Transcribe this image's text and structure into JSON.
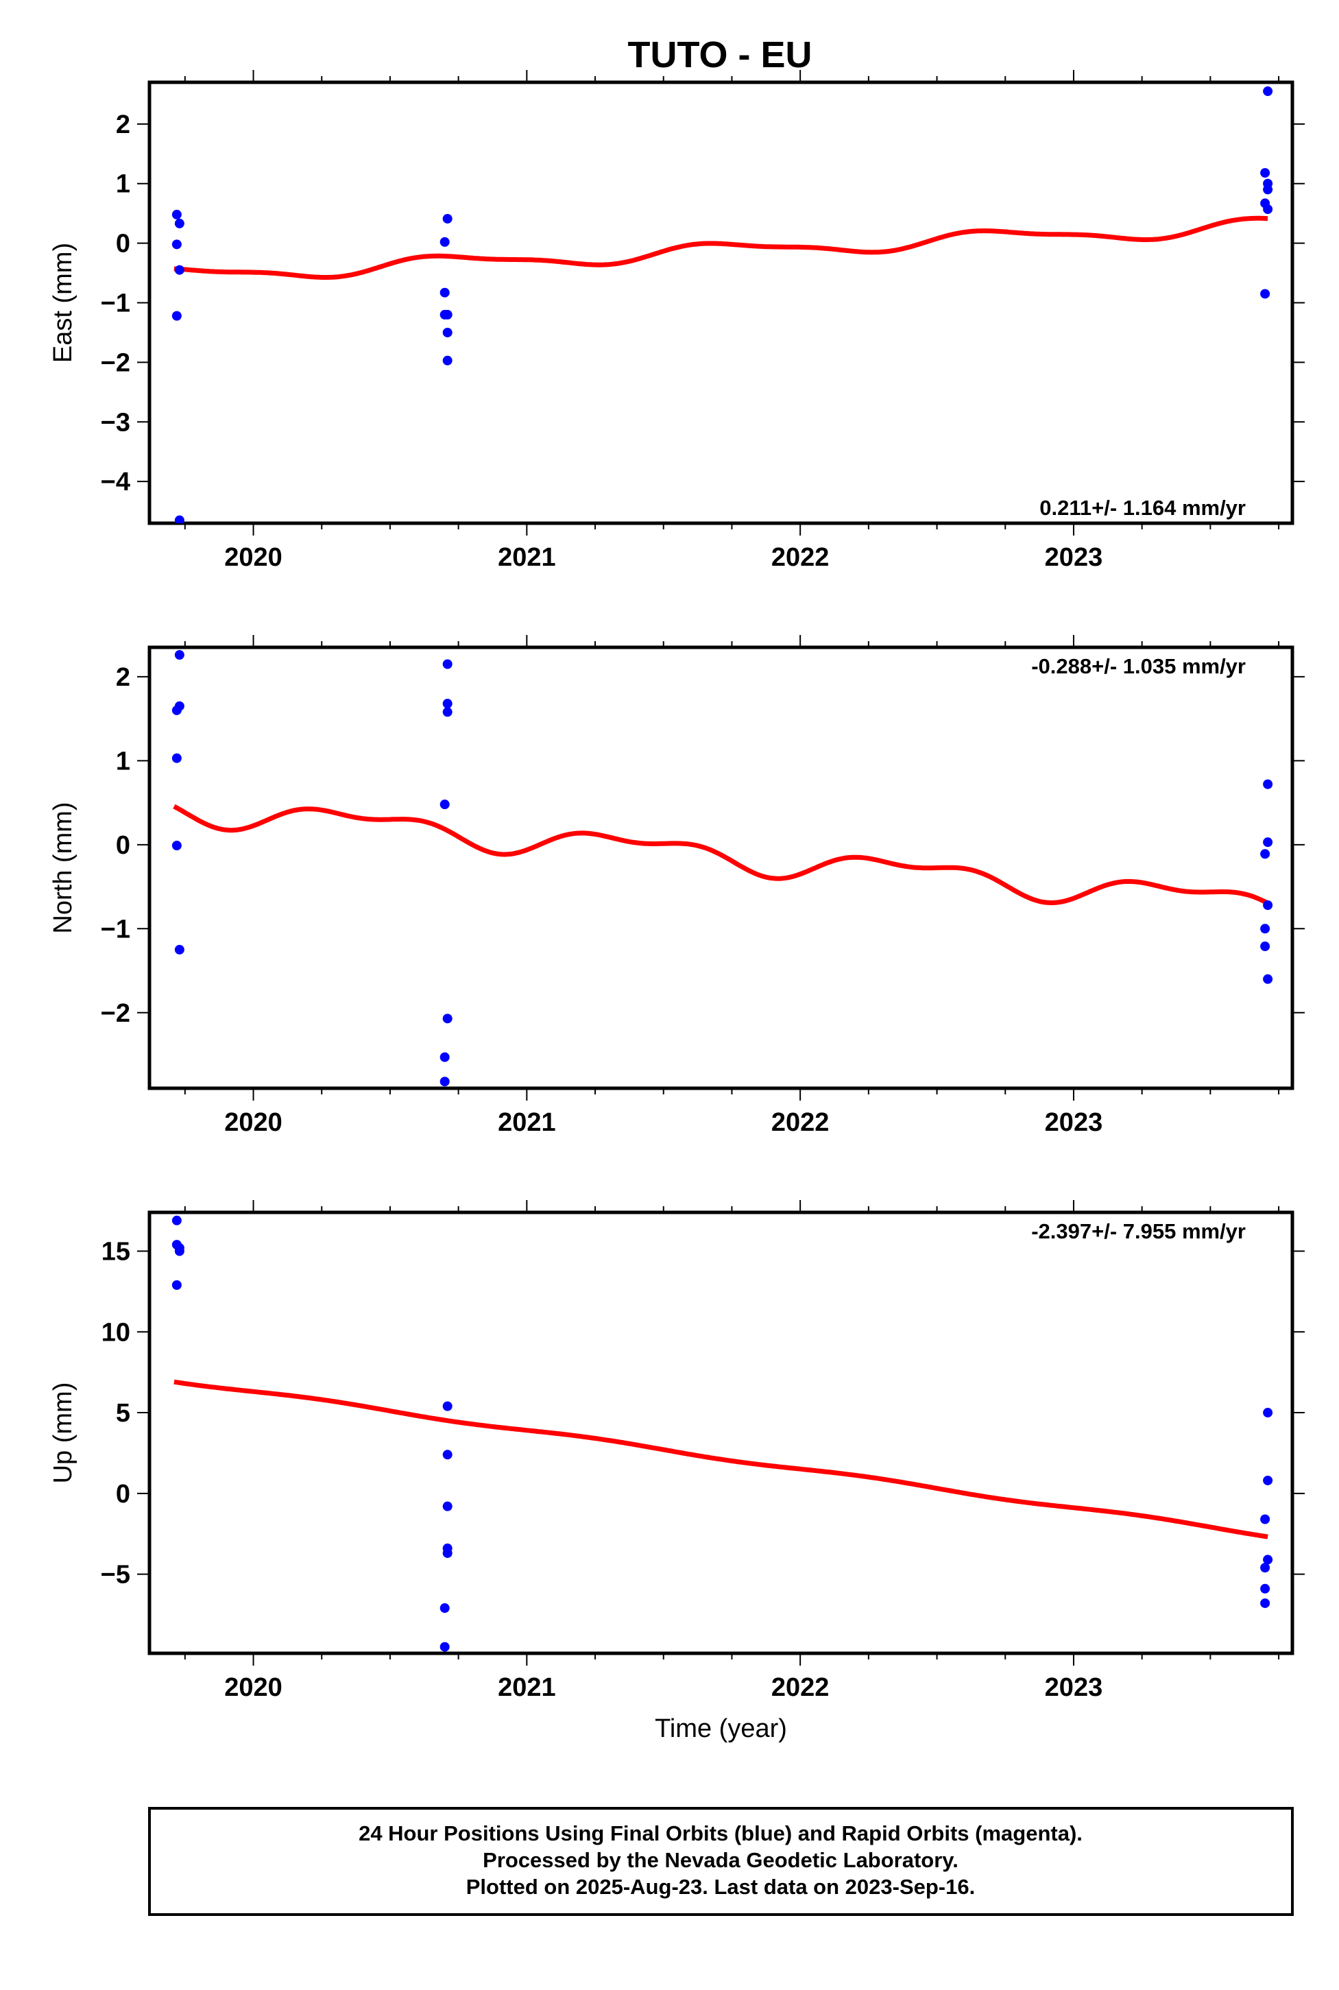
{
  "title": "TUTO - EU",
  "footer": {
    "lines": [
      "24 Hour Positions Using Final Orbits (blue) and Rapid Orbits (magenta).",
      "Processed by the Nevada Geodetic Laboratory.",
      "Plotted on 2025-Aug-23. Last data on 2023-Sep-16."
    ]
  },
  "colors": {
    "data_points": "#0000ff",
    "model_fit": "#ff0000",
    "frame": "#000000"
  },
  "chart_data": [
    {
      "type": "scatter",
      "component": "East",
      "ylabel": "East (mm)",
      "xlabel": "",
      "xlim": [
        2019.62,
        2023.8
      ],
      "ylim": [
        -4.7,
        2.7
      ],
      "xticks": [
        2020,
        2021,
        2022,
        2023
      ],
      "yticks": [
        2,
        1,
        0,
        -1,
        -2,
        -3,
        -4
      ],
      "rate_label": "0.211+/- 1.164 mm/yr",
      "rate_position": "bottom-right",
      "points": [
        {
          "x": 2019.72,
          "y": 0.48
        },
        {
          "x": 2019.73,
          "y": 0.33
        },
        {
          "x": 2019.72,
          "y": -0.02
        },
        {
          "x": 2019.73,
          "y": -0.45
        },
        {
          "x": 2019.72,
          "y": -1.22
        },
        {
          "x": 2019.73,
          "y": -4.65
        },
        {
          "x": 2020.71,
          "y": 0.41
        },
        {
          "x": 2020.7,
          "y": 0.02
        },
        {
          "x": 2020.7,
          "y": -0.83
        },
        {
          "x": 2020.7,
          "y": -1.2
        },
        {
          "x": 2020.71,
          "y": -1.2
        },
        {
          "x": 2020.71,
          "y": -1.5
        },
        {
          "x": 2020.71,
          "y": -1.97
        },
        {
          "x": 2023.71,
          "y": 2.55
        },
        {
          "x": 2023.7,
          "y": 1.18
        },
        {
          "x": 2023.71,
          "y": 1.0
        },
        {
          "x": 2023.71,
          "y": 0.9
        },
        {
          "x": 2023.7,
          "y": 0.67
        },
        {
          "x": 2023.71,
          "y": 0.57
        },
        {
          "x": 2023.7,
          "y": -0.85
        }
      ],
      "fit": {
        "start_x": 2019.71,
        "end_x": 2023.71,
        "start_y": -0.62,
        "end_y": 0.25,
        "intercept": -0.55,
        "slope": 0.211,
        "t0": 2019.71,
        "amp_annual": 0.12,
        "phase_annual": 3.3,
        "amp_semi": 0.04,
        "phase_semi": 0.5
      }
    },
    {
      "type": "scatter",
      "component": "North",
      "ylabel": "North (mm)",
      "xlabel": "",
      "xlim": [
        2019.62,
        2023.8
      ],
      "ylim": [
        -2.9,
        2.35
      ],
      "xticks": [
        2020,
        2021,
        2022,
        2023
      ],
      "yticks": [
        2,
        1,
        0,
        -1,
        -2
      ],
      "rate_label": "-0.288+/- 1.035 mm/yr",
      "rate_position": "top-right",
      "points": [
        {
          "x": 2019.73,
          "y": 2.26
        },
        {
          "x": 2019.73,
          "y": 1.65
        },
        {
          "x": 2019.72,
          "y": 1.6
        },
        {
          "x": 2019.72,
          "y": 1.03
        },
        {
          "x": 2019.72,
          "y": -0.01
        },
        {
          "x": 2019.73,
          "y": -1.25
        },
        {
          "x": 2020.71,
          "y": 2.15
        },
        {
          "x": 2020.71,
          "y": 1.68
        },
        {
          "x": 2020.71,
          "y": 1.58
        },
        {
          "x": 2020.7,
          "y": 0.48
        },
        {
          "x": 2020.71,
          "y": -2.07
        },
        {
          "x": 2020.7,
          "y": -2.53
        },
        {
          "x": 2020.7,
          "y": -2.82
        },
        {
          "x": 2023.71,
          "y": 0.72
        },
        {
          "x": 2023.71,
          "y": 0.03
        },
        {
          "x": 2023.7,
          "y": -0.11
        },
        {
          "x": 2023.71,
          "y": -0.72
        },
        {
          "x": 2023.7,
          "y": -1.0
        },
        {
          "x": 2023.7,
          "y": -1.21
        },
        {
          "x": 2023.71,
          "y": -1.6
        }
      ],
      "fit": {
        "start_x": 2019.71,
        "end_x": 2023.71,
        "start_y": 0.56,
        "end_y": -0.61,
        "intercept": 0.45,
        "slope": -0.288,
        "t0": 2019.71,
        "amp_annual": 0.14,
        "phase_annual": -0.9,
        "amp_semi": 0.08,
        "phase_semi": -0.4
      }
    },
    {
      "type": "scatter",
      "component": "Up",
      "ylabel": "Up (mm)",
      "xlabel": "Time (year)",
      "xlim": [
        2019.62,
        2023.8
      ],
      "ylim": [
        -9.9,
        17.4
      ],
      "xticks": [
        2020,
        2021,
        2022,
        2023
      ],
      "yticks": [
        15,
        10,
        5,
        0,
        -5
      ],
      "rate_label": "-2.397+/- 7.955 mm/yr",
      "rate_position": "top-right",
      "points": [
        {
          "x": 2019.72,
          "y": 16.9
        },
        {
          "x": 2019.72,
          "y": 15.4
        },
        {
          "x": 2019.73,
          "y": 15.2
        },
        {
          "x": 2019.73,
          "y": 15.0
        },
        {
          "x": 2019.72,
          "y": 12.9
        },
        {
          "x": 2020.71,
          "y": 5.4
        },
        {
          "x": 2020.71,
          "y": 2.4
        },
        {
          "x": 2020.71,
          "y": -0.8
        },
        {
          "x": 2020.71,
          "y": -3.4
        },
        {
          "x": 2020.71,
          "y": -3.7
        },
        {
          "x": 2020.7,
          "y": -7.1
        },
        {
          "x": 2020.7,
          "y": -9.5
        },
        {
          "x": 2023.71,
          "y": 5.0
        },
        {
          "x": 2023.71,
          "y": 0.8
        },
        {
          "x": 2023.7,
          "y": -1.6
        },
        {
          "x": 2023.71,
          "y": -4.1
        },
        {
          "x": 2023.7,
          "y": -4.6
        },
        {
          "x": 2023.7,
          "y": -5.9
        },
        {
          "x": 2023.7,
          "y": -6.8
        }
      ],
      "fit": {
        "start_x": 2019.71,
        "end_x": 2023.71,
        "start_y": 7.0,
        "end_y": -2.6,
        "intercept": 7.0,
        "slope": -2.397,
        "t0": 2019.71,
        "amp_annual": 0.1,
        "phase_annual": 0.0,
        "amp_semi": 0.0,
        "phase_semi": 0.0
      }
    }
  ]
}
